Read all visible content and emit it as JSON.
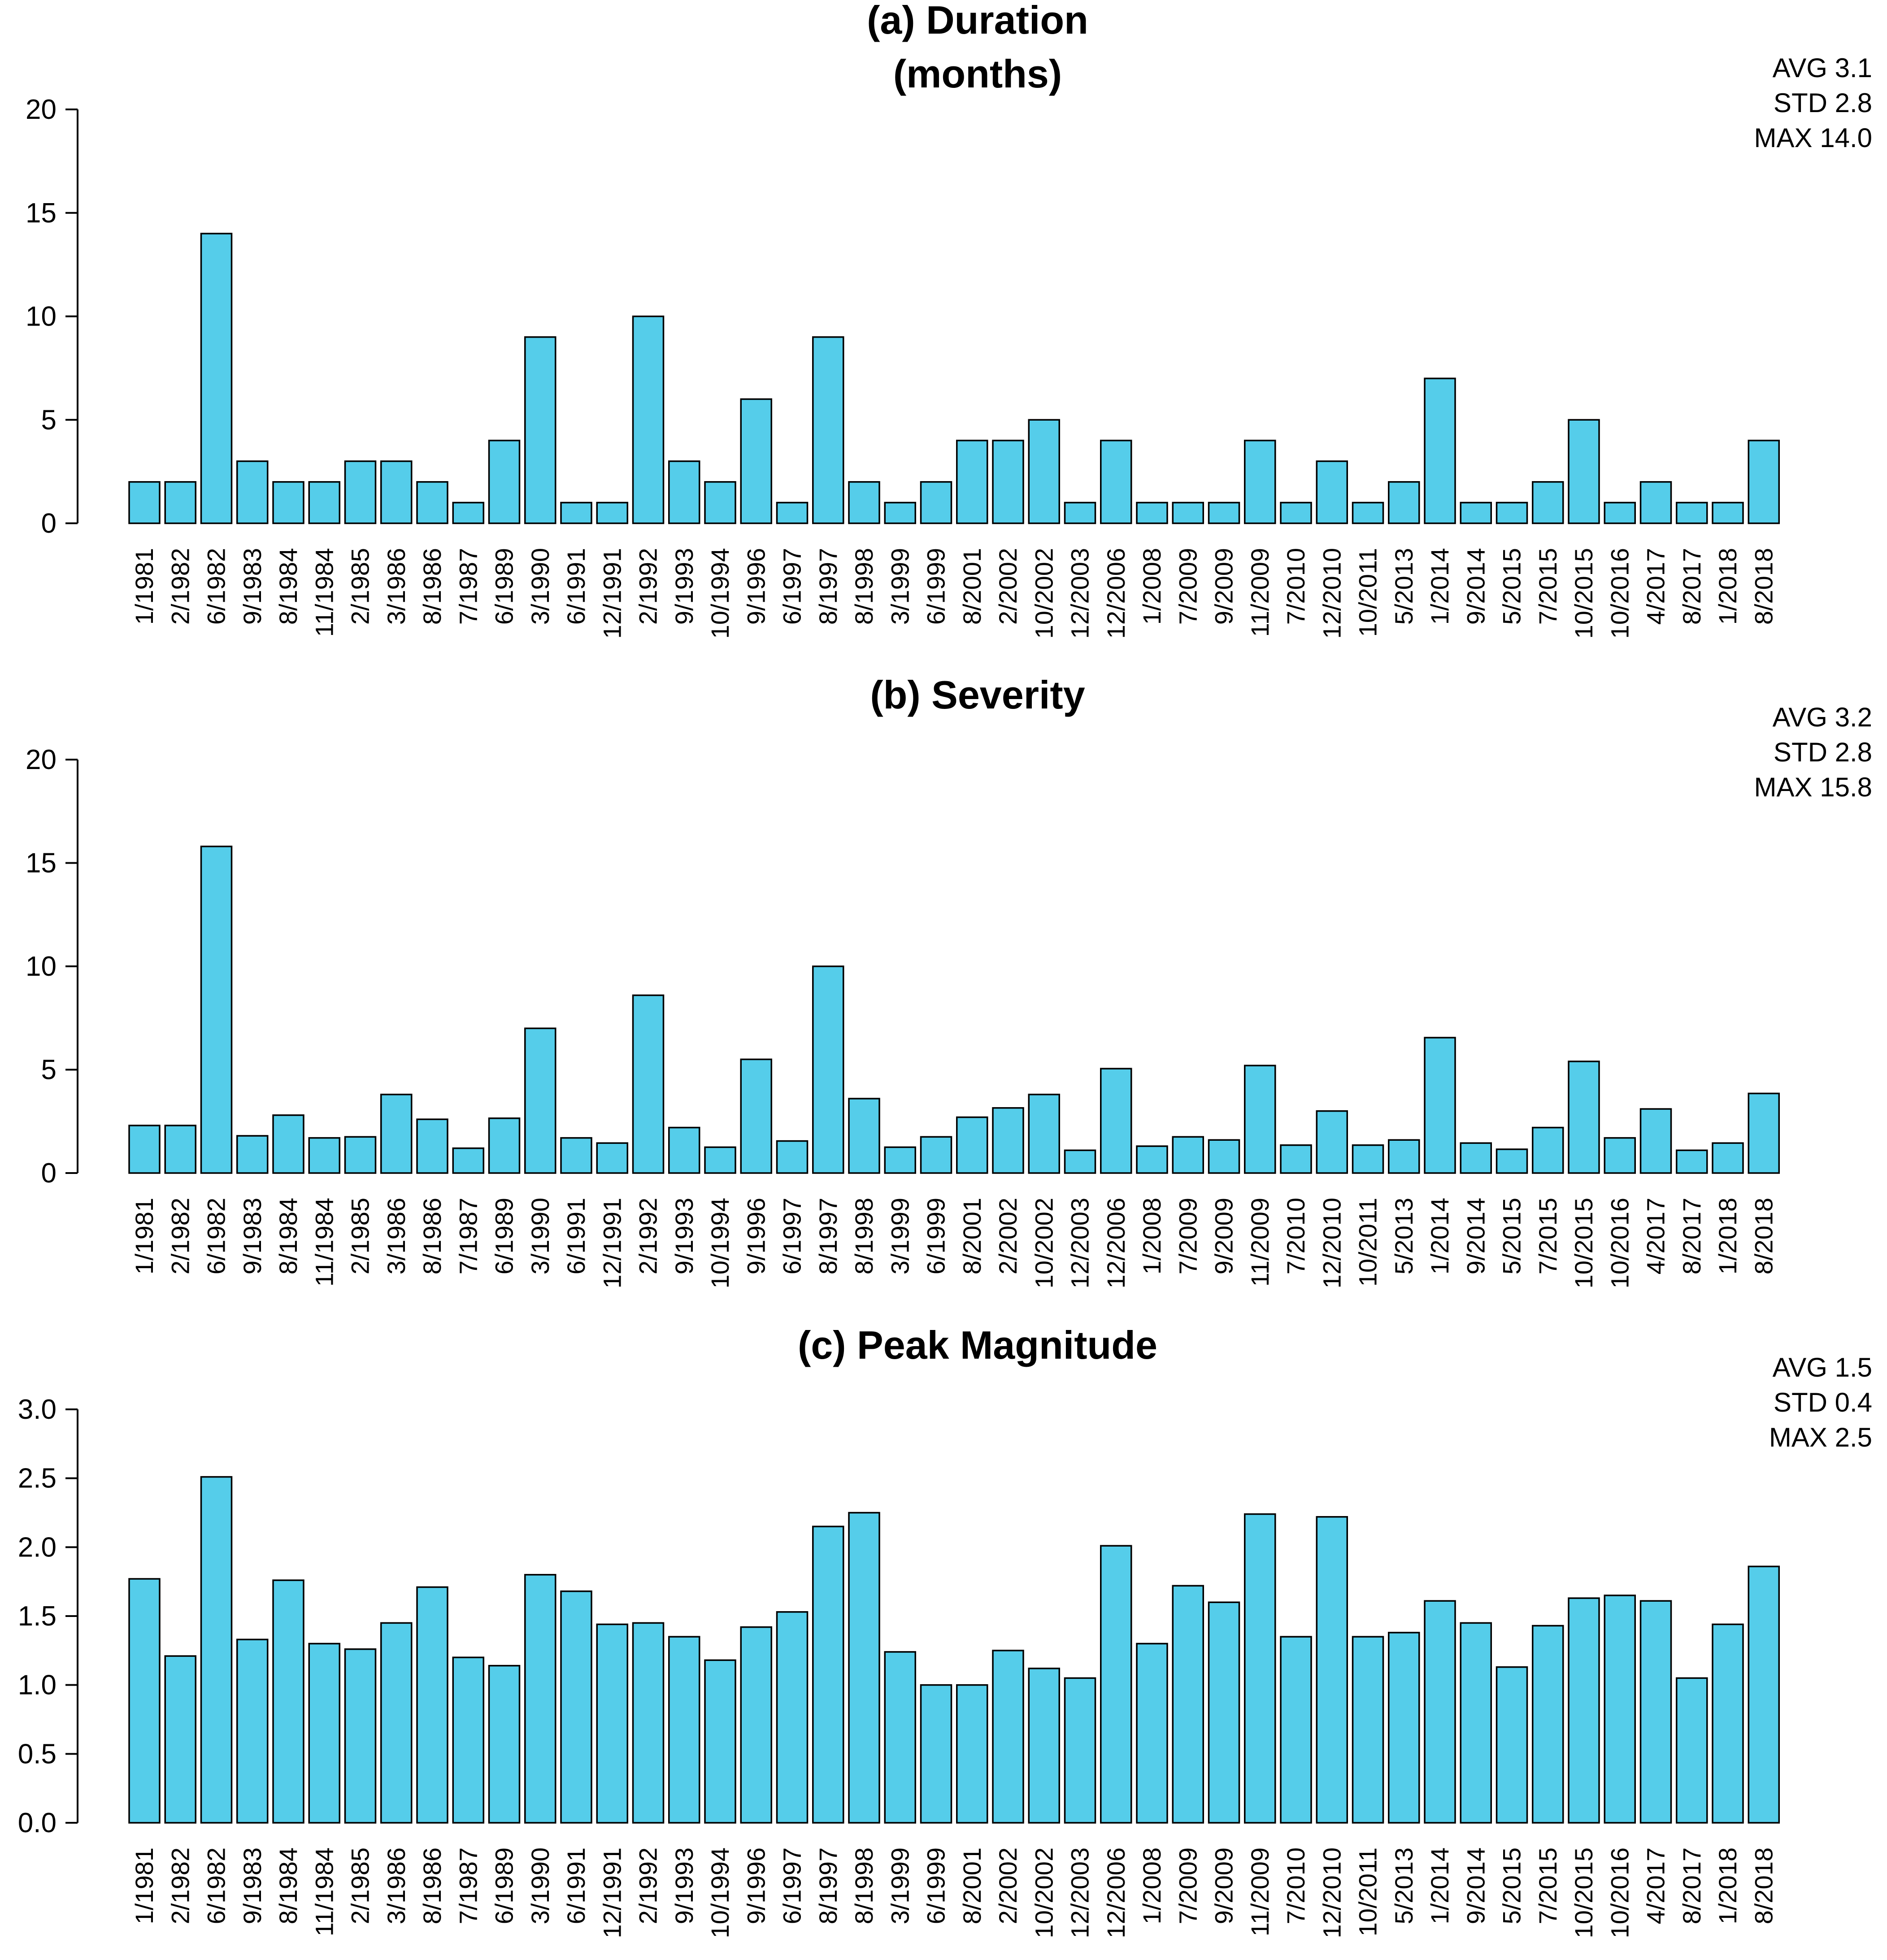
{
  "chart_data": [
    {
      "type": "bar",
      "title": "(a) Duration\n(months)",
      "ylim": [
        0,
        20
      ],
      "yticks": [
        "0",
        "5",
        "10",
        "15",
        "20"
      ],
      "stats": [
        "AVG  3.1",
        "STD  2.8",
        "MAX 14.0"
      ],
      "categories": [
        "1/1981",
        "2/1982",
        "6/1982",
        "9/1983",
        "8/1984",
        "11/1984",
        "2/1985",
        "3/1986",
        "8/1986",
        "7/1987",
        "6/1989",
        "3/1990",
        "6/1991",
        "12/1991",
        "2/1992",
        "9/1993",
        "10/1994",
        "9/1996",
        "6/1997",
        "8/1997",
        "8/1998",
        "3/1999",
        "6/1999",
        "8/2001",
        "2/2002",
        "10/2002",
        "12/2003",
        "12/2006",
        "1/2008",
        "7/2009",
        "9/2009",
        "11/2009",
        "7/2010",
        "12/2010",
        "10/2011",
        "5/2013",
        "1/2014",
        "9/2014",
        "5/2015",
        "7/2015",
        "10/2015",
        "10/2016",
        "4/2017",
        "8/2017",
        "1/2018",
        "8/2018"
      ],
      "values": [
        2,
        2,
        14,
        3,
        2,
        2,
        3,
        3,
        2,
        1,
        4,
        9,
        1,
        1,
        10,
        3,
        2,
        6,
        1,
        9,
        2,
        1,
        2,
        4,
        4,
        5,
        1,
        4,
        1,
        1,
        1,
        4,
        1,
        3,
        1,
        2,
        7,
        1,
        1,
        2,
        5,
        1,
        2,
        1,
        1,
        4
      ],
      "bar_color": "#55cdea",
      "grid": false
    },
    {
      "type": "bar",
      "title": "(b) Severity",
      "ylim": [
        0,
        20
      ],
      "yticks": [
        "0",
        "5",
        "10",
        "15",
        "20"
      ],
      "stats": [
        "AVG  3.2",
        "STD  2.8",
        "MAX 15.8"
      ],
      "categories": [
        "1/1981",
        "2/1982",
        "6/1982",
        "9/1983",
        "8/1984",
        "11/1984",
        "2/1985",
        "3/1986",
        "8/1986",
        "7/1987",
        "6/1989",
        "3/1990",
        "6/1991",
        "12/1991",
        "2/1992",
        "9/1993",
        "10/1994",
        "9/1996",
        "6/1997",
        "8/1997",
        "8/1998",
        "3/1999",
        "6/1999",
        "8/2001",
        "2/2002",
        "10/2002",
        "12/2003",
        "12/2006",
        "1/2008",
        "7/2009",
        "9/2009",
        "11/2009",
        "7/2010",
        "12/2010",
        "10/2011",
        "5/2013",
        "1/2014",
        "9/2014",
        "5/2015",
        "7/2015",
        "10/2015",
        "10/2016",
        "4/2017",
        "8/2017",
        "1/2018",
        "8/2018"
      ],
      "values": [
        2.3,
        2.3,
        15.8,
        1.8,
        2.8,
        1.7,
        1.75,
        3.8,
        2.6,
        1.2,
        2.65,
        7.0,
        1.7,
        1.45,
        8.6,
        2.2,
        1.25,
        5.5,
        1.55,
        10.0,
        3.6,
        1.25,
        1.75,
        2.7,
        3.15,
        3.8,
        1.1,
        5.05,
        1.3,
        1.75,
        1.6,
        5.2,
        1.35,
        3.0,
        1.35,
        1.6,
        6.55,
        1.45,
        1.15,
        2.2,
        5.4,
        1.7,
        3.1,
        1.1,
        1.45,
        3.85
      ],
      "bar_color": "#55cdea",
      "grid": false
    },
    {
      "type": "bar",
      "title": "(c) Peak Magnitude",
      "ylim": [
        0,
        3.0
      ],
      "yticks": [
        "0.0",
        "0.5",
        "1.0",
        "1.5",
        "2.0",
        "2.5",
        "3.0"
      ],
      "stats": [
        "AVG  1.5",
        "STD  0.4",
        "MAX 2.5"
      ],
      "categories": [
        "1/1981",
        "2/1982",
        "6/1982",
        "9/1983",
        "8/1984",
        "11/1984",
        "2/1985",
        "3/1986",
        "8/1986",
        "7/1987",
        "6/1989",
        "3/1990",
        "6/1991",
        "12/1991",
        "2/1992",
        "9/1993",
        "10/1994",
        "9/1996",
        "6/1997",
        "8/1997",
        "8/1998",
        "3/1999",
        "6/1999",
        "8/2001",
        "2/2002",
        "10/2002",
        "12/2003",
        "12/2006",
        "1/2008",
        "7/2009",
        "9/2009",
        "11/2009",
        "7/2010",
        "12/2010",
        "10/2011",
        "5/2013",
        "1/2014",
        "9/2014",
        "5/2015",
        "7/2015",
        "10/2015",
        "10/2016",
        "4/2017",
        "8/2017",
        "1/2018",
        "8/2018"
      ],
      "values": [
        1.77,
        1.21,
        2.51,
        1.33,
        1.76,
        1.3,
        1.26,
        1.45,
        1.71,
        1.2,
        1.14,
        1.8,
        1.68,
        1.44,
        1.45,
        1.35,
        1.18,
        1.42,
        1.53,
        2.15,
        2.25,
        1.24,
        1.0,
        1.0,
        1.25,
        1.12,
        1.05,
        2.01,
        1.3,
        1.72,
        1.6,
        2.24,
        1.35,
        2.22,
        1.35,
        1.38,
        1.61,
        1.45,
        1.13,
        1.43,
        1.63,
        1.65,
        1.61,
        1.05,
        1.44,
        1.86
      ],
      "bar_color": "#55cdea",
      "grid": false
    }
  ]
}
